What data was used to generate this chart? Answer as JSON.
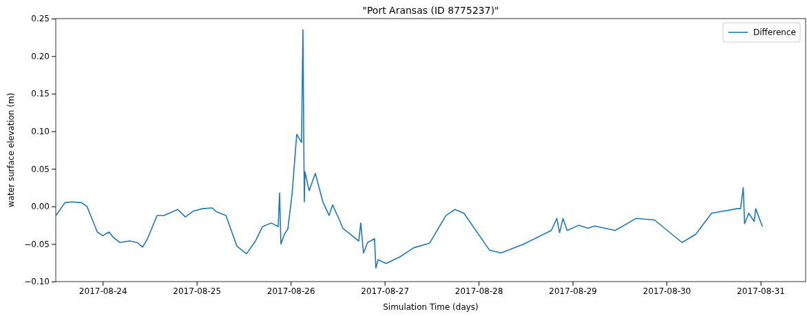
{
  "chart_data": {
    "type": "line",
    "title": "\"Port Aransas (ID 8775237)\"",
    "xlabel": "Simulation Time (days)",
    "ylabel": "water surface elevation (m)",
    "x": [
      "2017-08-23T12:03",
      "2017-08-23T14:20",
      "2017-08-23T16:05",
      "2017-08-23T18:33",
      "2017-08-23T19:58",
      "2017-08-23T21:22",
      "2017-08-23T22:36",
      "2017-08-24T00:00",
      "2017-08-24T01:35",
      "2017-08-24T02:38",
      "2017-08-24T04:23",
      "2017-08-24T06:51",
      "2017-08-24T08:47",
      "2017-08-24T10:11",
      "2017-08-24T11:25",
      "2017-08-24T13:53",
      "2017-08-24T15:38",
      "2017-08-24T19:09",
      "2017-08-24T21:05",
      "2017-08-24T23:11",
      "2017-08-25T01:29",
      "2017-08-25T03:56",
      "2017-08-25T04:59",
      "2017-08-25T07:27",
      "2017-08-25T10:16",
      "2017-08-25T12:43",
      "2017-08-25T15:00",
      "2017-08-25T16:46",
      "2017-08-25T19:03",
      "2017-08-25T20:48",
      "2017-08-25T21:09",
      "2017-08-25T21:30",
      "2017-08-25T22:23",
      "2017-08-25T23:16",
      "2017-08-26T00:19",
      "2017-08-26T01:32",
      "2017-08-26T02:46",
      "2017-08-26T03:07",
      "2017-08-26T03:28",
      "2017-08-26T03:39",
      "2017-08-26T04:42",
      "2017-08-26T06:17",
      "2017-08-26T08:13",
      "2017-08-26T09:48",
      "2017-08-26T10:41",
      "2017-08-26T12:26",
      "2017-08-26T13:19",
      "2017-08-26T17:22",
      "2017-08-26T17:53",
      "2017-08-26T18:35",
      "2017-08-26T19:38",
      "2017-08-26T21:24",
      "2017-08-26T21:45",
      "2017-08-26T22:17",
      "2017-08-27T00:23",
      "2017-08-27T03:54",
      "2017-08-27T07:25",
      "2017-08-27T11:27",
      "2017-08-27T15:40",
      "2017-08-27T17:57",
      "2017-08-27T20:14",
      "2017-08-28T02:44",
      "2017-08-28T05:43",
      "2017-08-28T11:31",
      "2017-08-28T18:33",
      "2017-08-28T19:57",
      "2017-08-28T20:40",
      "2017-08-28T21:32",
      "2017-08-28T22:35",
      "2017-08-29T01:35",
      "2017-08-29T03:52",
      "2017-08-29T05:37",
      "2017-08-29T10:53",
      "2017-08-29T16:10",
      "2017-08-29T20:54",
      "2017-08-30T03:56",
      "2017-08-30T07:26",
      "2017-08-30T11:29",
      "2017-08-30T17:59",
      "2017-08-30T18:52",
      "2017-08-30T19:34",
      "2017-08-30T19:55",
      "2017-08-30T20:58",
      "2017-08-30T22:23",
      "2017-08-30T22:44",
      "2017-08-31T00:29"
    ],
    "series": [
      {
        "name": "Difference",
        "color": "#1f77b4",
        "values": [
          -0.012,
          0.005,
          0.006,
          0.005,
          0.0,
          -0.018,
          -0.034,
          -0.039,
          -0.034,
          -0.041,
          -0.048,
          -0.046,
          -0.048,
          -0.054,
          -0.043,
          -0.012,
          -0.012,
          -0.004,
          -0.014,
          -0.006,
          -0.003,
          -0.002,
          -0.007,
          -0.012,
          -0.053,
          -0.063,
          -0.046,
          -0.027,
          -0.022,
          -0.027,
          0.018,
          -0.05,
          -0.037,
          -0.03,
          0.015,
          0.096,
          0.085,
          0.235,
          0.006,
          0.046,
          0.021,
          0.044,
          0.006,
          -0.012,
          0.002,
          -0.018,
          -0.029,
          -0.046,
          -0.022,
          -0.062,
          -0.048,
          -0.043,
          -0.082,
          -0.071,
          -0.076,
          -0.067,
          -0.055,
          -0.049,
          -0.012,
          -0.004,
          -0.009,
          -0.058,
          -0.062,
          -0.05,
          -0.032,
          -0.016,
          -0.035,
          -0.016,
          -0.032,
          -0.025,
          -0.029,
          -0.026,
          -0.032,
          -0.016,
          -0.018,
          -0.048,
          -0.037,
          -0.009,
          -0.003,
          -0.003,
          0.025,
          -0.023,
          -0.009,
          -0.02,
          -0.003,
          -0.027
        ]
      }
    ],
    "xlim": [
      "2017-08-23T12:00",
      "2017-08-31T11:30"
    ],
    "xticks": [
      "2017-08-24",
      "2017-08-25",
      "2017-08-26",
      "2017-08-27",
      "2017-08-28",
      "2017-08-29",
      "2017-08-30",
      "2017-08-31"
    ],
    "ylim": [
      -0.1,
      0.25
    ],
    "yticks": [
      {
        "value": -0.1,
        "label": "−0.10"
      },
      {
        "value": -0.05,
        "label": "−0.05"
      },
      {
        "value": 0,
        "label": "0.00"
      },
      {
        "value": 0.05,
        "label": "0.05"
      },
      {
        "value": 0.1,
        "label": "0.10"
      },
      {
        "value": 0.15,
        "label": "0.15"
      },
      {
        "value": 0.2,
        "label": "0.20"
      },
      {
        "value": 0.25,
        "label": "0.25"
      }
    ],
    "grid": false,
    "legend": "top right",
    "line_style": "solid",
    "marker": "none"
  }
}
